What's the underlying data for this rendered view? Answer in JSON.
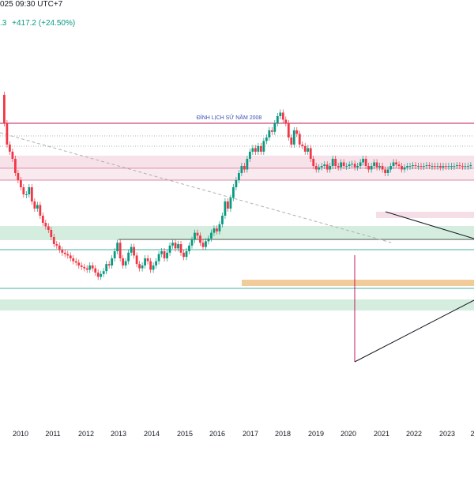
{
  "header": {
    "datetime": "025 09:30 UTC+7",
    "price_fragment": ".3",
    "change": "+417.2 (+24.50%)"
  },
  "colors": {
    "up": "#089981",
    "down": "#f23645",
    "zone_green": "#b2dfc5",
    "zone_pink": "#f3d6e0",
    "zone_orange": "#f0c28a",
    "label": "#3f51b5",
    "resistance_line": "#c2185b",
    "axis_text": "#131722",
    "grid_dotted": "#b0b0b0"
  },
  "chart_data": {
    "type": "candlestick",
    "timeframe": "monthly",
    "title": "",
    "xlabel": "",
    "ylabel": "",
    "x_ticks": [
      "2010",
      "2011",
      "2012",
      "2013",
      "2014",
      "2015",
      "2016",
      "2017",
      "2018",
      "2019",
      "2020",
      "2021",
      "2022",
      "2023",
      "2"
    ],
    "annotations": [
      {
        "type": "label",
        "text": "ĐỈNH LỊCH SỬ NĂM 2008"
      }
    ],
    "drawings": [
      "horizontal resistance line at the 2008 historical top",
      "dotted descending trendline from 2010 to 2021",
      "green support zones",
      "pink resistance zones",
      "orange pivot zone 2016-2025",
      "symmetrical triangle 2020-2025"
    ],
    "series": [
      {
        "values": [
          [
            200,
            160
          ],
          [
            160,
            130
          ],
          [
            130,
            120
          ],
          [
            120,
            110
          ],
          [
            110,
            90
          ],
          [
            90,
            80
          ],
          [
            80,
            70
          ],
          [
            70,
            60
          ],
          [
            60,
            60
          ],
          [
            60,
            70
          ],
          [
            70,
            50
          ],
          [
            50,
            40
          ],
          [
            40,
            45
          ],
          [
            45,
            30
          ],
          [
            30,
            20
          ],
          [
            20,
            15
          ],
          [
            15,
            10
          ],
          [
            10,
            0
          ],
          [
            0,
            -10
          ],
          [
            -10,
            -12
          ],
          [
            -12,
            -18
          ],
          [
            -18,
            -22
          ],
          [
            -22,
            -24
          ],
          [
            -24,
            -26
          ],
          [
            -26,
            -30
          ],
          [
            -30,
            -34
          ],
          [
            -34,
            -36
          ],
          [
            -36,
            -40
          ],
          [
            -40,
            -42
          ],
          [
            -42,
            -44
          ],
          [
            -44,
            -46
          ],
          [
            -46,
            -40
          ],
          [
            -40,
            -44
          ],
          [
            -44,
            -50
          ],
          [
            -50,
            -56
          ],
          [
            -56,
            -52
          ],
          [
            -52,
            -48
          ],
          [
            -48,
            -38
          ],
          [
            -38,
            -40
          ],
          [
            -40,
            -30
          ],
          [
            -30,
            -20
          ],
          [
            -20,
            -8
          ],
          [
            -8,
            -30
          ],
          [
            -30,
            -40
          ],
          [
            -40,
            -34
          ],
          [
            -34,
            -22
          ],
          [
            -22,
            -14
          ],
          [
            -14,
            -26
          ],
          [
            -26,
            -38
          ],
          [
            -38,
            -44
          ],
          [
            -44,
            -40
          ],
          [
            -40,
            -30
          ],
          [
            -30,
            -34
          ],
          [
            -34,
            -46
          ],
          [
            -46,
            -40
          ],
          [
            -40,
            -34
          ],
          [
            -34,
            -24
          ],
          [
            -24,
            -20
          ],
          [
            -20,
            -30
          ],
          [
            -30,
            -22
          ],
          [
            -22,
            -12
          ],
          [
            -12,
            -8
          ],
          [
            -8,
            -16
          ],
          [
            -16,
            -10
          ],
          [
            -10,
            -22
          ],
          [
            -22,
            -28
          ],
          [
            -28,
            -20
          ],
          [
            -20,
            -12
          ],
          [
            -12,
            -4
          ],
          [
            -4,
            6
          ],
          [
            6,
            2
          ],
          [
            2,
            -8
          ],
          [
            -8,
            -14
          ],
          [
            -14,
            -6
          ],
          [
            -6,
            -2
          ],
          [
            -2,
            6
          ],
          [
            6,
            12
          ],
          [
            12,
            8
          ],
          [
            8,
            18
          ],
          [
            18,
            30
          ],
          [
            30,
            50
          ],
          [
            50,
            40
          ],
          [
            40,
            55
          ],
          [
            55,
            70
          ],
          [
            70,
            80
          ],
          [
            80,
            90
          ],
          [
            90,
            100
          ],
          [
            100,
            95
          ],
          [
            95,
            110
          ],
          [
            110,
            120
          ],
          [
            120,
            125
          ],
          [
            125,
            120
          ],
          [
            120,
            128
          ],
          [
            128,
            120
          ],
          [
            120,
            135
          ],
          [
            135,
            140
          ],
          [
            140,
            150
          ],
          [
            150,
            148
          ],
          [
            148,
            160
          ],
          [
            160,
            170
          ],
          [
            170,
            175
          ],
          [
            175,
            165
          ],
          [
            165,
            160
          ],
          [
            160,
            140
          ],
          [
            140,
            130
          ],
          [
            130,
            150
          ],
          [
            150,
            145
          ],
          [
            145,
            130
          ],
          [
            130,
            128
          ],
          [
            128,
            120
          ],
          [
            120,
            125
          ],
          [
            125,
            110
          ],
          [
            110,
            100
          ],
          [
            100,
            95
          ],
          [
            95,
            98
          ],
          [
            98,
            100
          ],
          [
            100,
            102
          ],
          [
            102,
            95
          ],
          [
            95,
            100
          ],
          [
            100,
            110
          ],
          [
            110,
            100
          ],
          [
            100,
            98
          ],
          [
            98,
            105
          ],
          [
            105,
            100
          ],
          [
            100,
            100
          ],
          [
            100,
            102
          ],
          [
            102,
            103
          ],
          [
            103,
            98
          ],
          [
            98,
            100
          ],
          [
            100,
            105
          ],
          [
            105,
            110
          ],
          [
            110,
            100
          ],
          [
            100,
            95
          ],
          [
            95,
            100
          ],
          [
            100,
            105
          ],
          [
            105,
            98
          ],
          [
            98,
            100
          ],
          [
            100,
            95
          ],
          [
            95,
            90
          ],
          [
            90,
            95
          ],
          [
            95,
            100
          ],
          [
            100,
            105
          ],
          [
            105,
            102
          ],
          [
            102,
            100
          ],
          [
            100,
            95
          ],
          [
            95,
            98
          ],
          [
            98,
            100
          ],
          [
            100,
            100
          ],
          [
            100,
            101
          ],
          [
            101,
            100
          ],
          [
            100,
            100
          ],
          [
            100,
            99
          ],
          [
            99,
            100
          ],
          [
            100,
            101
          ],
          [
            101,
            100
          ],
          [
            100,
            100
          ],
          [
            100,
            99
          ],
          [
            99,
            100
          ],
          [
            100,
            98
          ],
          [
            98,
            100
          ],
          [
            100,
            99
          ],
          [
            99,
            100
          ],
          [
            100,
            100
          ],
          [
            100,
            100
          ],
          [
            100,
            101
          ],
          [
            101,
            100
          ],
          [
            100,
            99
          ],
          [
            99,
            100
          ],
          [
            100,
            100
          ],
          [
            100,
            101
          ]
        ]
      }
    ]
  }
}
